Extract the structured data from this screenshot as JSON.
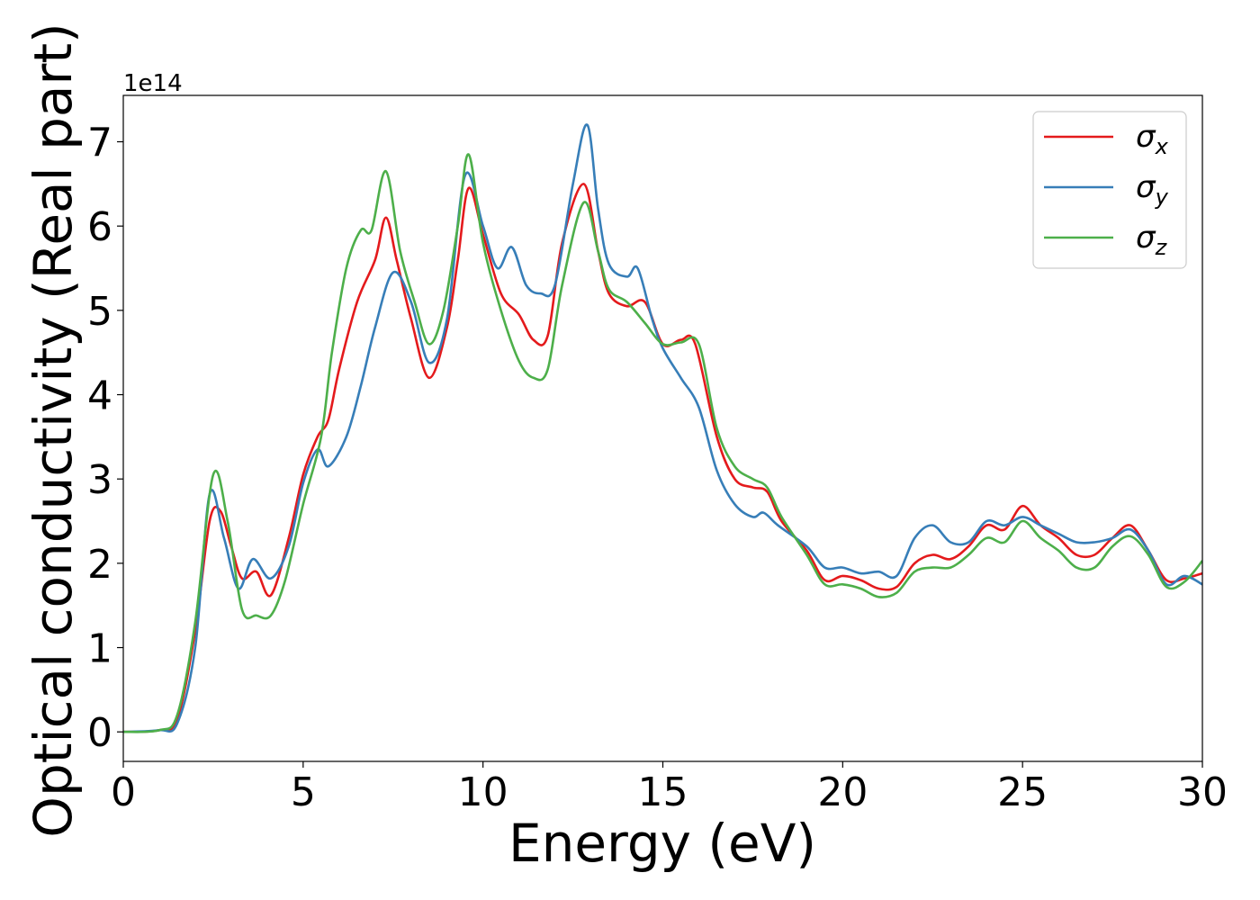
{
  "chart_data": {
    "type": "line",
    "xlabel": "Energy (eV)",
    "ylabel": "Optical conductivity (Real part)",
    "y_multiplier_label": "1e14",
    "xlim": [
      0,
      30
    ],
    "ylim": [
      -0.35,
      7.55
    ],
    "xticks": [
      0,
      5,
      10,
      15,
      20,
      25,
      30
    ],
    "yticks": [
      0,
      1,
      2,
      3,
      4,
      5,
      6,
      7
    ],
    "grid": false,
    "legend_position": "top-right",
    "series": [
      {
        "base": "σ",
        "sub": "x",
        "color": "#e41a1c",
        "points": [
          [
            0,
            0
          ],
          [
            1,
            0.02
          ],
          [
            1.5,
            0.15
          ],
          [
            2,
            1.2
          ],
          [
            2.4,
            2.5
          ],
          [
            2.7,
            2.62
          ],
          [
            3.0,
            2.2
          ],
          [
            3.3,
            1.82
          ],
          [
            3.7,
            1.9
          ],
          [
            4.1,
            1.62
          ],
          [
            4.6,
            2.3
          ],
          [
            5,
            3.05
          ],
          [
            5.4,
            3.5
          ],
          [
            5.7,
            3.7
          ],
          [
            6,
            4.3
          ],
          [
            6.5,
            5.1
          ],
          [
            7,
            5.6
          ],
          [
            7.3,
            6.1
          ],
          [
            7.6,
            5.6
          ],
          [
            8,
            4.9
          ],
          [
            8.5,
            4.2
          ],
          [
            9,
            4.8
          ],
          [
            9.3,
            5.6
          ],
          [
            9.6,
            6.45
          ],
          [
            10,
            5.9
          ],
          [
            10.5,
            5.2
          ],
          [
            11,
            4.95
          ],
          [
            11.4,
            4.65
          ],
          [
            11.8,
            4.7
          ],
          [
            12.2,
            5.8
          ],
          [
            12.8,
            6.5
          ],
          [
            13.2,
            5.7
          ],
          [
            13.5,
            5.2
          ],
          [
            14,
            5.05
          ],
          [
            14.5,
            5.1
          ],
          [
            15,
            4.6
          ],
          [
            15.5,
            4.65
          ],
          [
            15.9,
            4.6
          ],
          [
            16.5,
            3.5
          ],
          [
            17,
            3.0
          ],
          [
            17.5,
            2.9
          ],
          [
            17.9,
            2.85
          ],
          [
            18.3,
            2.5
          ],
          [
            19,
            2.15
          ],
          [
            19.5,
            1.8
          ],
          [
            20,
            1.85
          ],
          [
            20.5,
            1.8
          ],
          [
            21,
            1.7
          ],
          [
            21.5,
            1.72
          ],
          [
            22,
            2.0
          ],
          [
            22.5,
            2.1
          ],
          [
            23,
            2.05
          ],
          [
            23.5,
            2.2
          ],
          [
            24,
            2.45
          ],
          [
            24.5,
            2.4
          ],
          [
            25,
            2.68
          ],
          [
            25.5,
            2.45
          ],
          [
            26,
            2.3
          ],
          [
            26.5,
            2.1
          ],
          [
            27,
            2.1
          ],
          [
            27.5,
            2.3
          ],
          [
            28,
            2.45
          ],
          [
            28.5,
            2.15
          ],
          [
            29,
            1.8
          ],
          [
            29.5,
            1.82
          ],
          [
            30,
            1.88
          ]
        ]
      },
      {
        "base": "σ",
        "sub": "y",
        "color": "#377eb8",
        "points": [
          [
            0,
            0
          ],
          [
            1,
            0.02
          ],
          [
            1.5,
            0.1
          ],
          [
            2,
            1.0
          ],
          [
            2.4,
            2.82
          ],
          [
            2.8,
            2.3
          ],
          [
            3.2,
            1.7
          ],
          [
            3.6,
            2.05
          ],
          [
            4.1,
            1.82
          ],
          [
            4.6,
            2.2
          ],
          [
            5,
            2.95
          ],
          [
            5.4,
            3.35
          ],
          [
            5.7,
            3.15
          ],
          [
            6.2,
            3.5
          ],
          [
            6.6,
            4.1
          ],
          [
            7,
            4.8
          ],
          [
            7.5,
            5.45
          ],
          [
            8,
            5.1
          ],
          [
            8.5,
            4.38
          ],
          [
            9,
            4.9
          ],
          [
            9.5,
            6.6
          ],
          [
            10,
            6.0
          ],
          [
            10.4,
            5.5
          ],
          [
            10.8,
            5.75
          ],
          [
            11.2,
            5.3
          ],
          [
            11.6,
            5.2
          ],
          [
            12,
            5.3
          ],
          [
            12.5,
            6.5
          ],
          [
            12.9,
            7.2
          ],
          [
            13.2,
            6.2
          ],
          [
            13.5,
            5.55
          ],
          [
            14,
            5.4
          ],
          [
            14.3,
            5.5
          ],
          [
            14.7,
            4.9
          ],
          [
            15,
            4.55
          ],
          [
            15.5,
            4.2
          ],
          [
            16,
            3.85
          ],
          [
            16.5,
            3.1
          ],
          [
            17,
            2.7
          ],
          [
            17.5,
            2.55
          ],
          [
            17.8,
            2.6
          ],
          [
            18.2,
            2.45
          ],
          [
            19,
            2.2
          ],
          [
            19.5,
            1.95
          ],
          [
            20,
            1.95
          ],
          [
            20.5,
            1.88
          ],
          [
            21,
            1.9
          ],
          [
            21.5,
            1.85
          ],
          [
            22,
            2.3
          ],
          [
            22.5,
            2.45
          ],
          [
            23,
            2.25
          ],
          [
            23.5,
            2.25
          ],
          [
            24,
            2.5
          ],
          [
            24.5,
            2.45
          ],
          [
            25,
            2.55
          ],
          [
            25.5,
            2.45
          ],
          [
            26,
            2.35
          ],
          [
            26.5,
            2.25
          ],
          [
            27,
            2.25
          ],
          [
            27.5,
            2.3
          ],
          [
            28,
            2.4
          ],
          [
            28.5,
            2.15
          ],
          [
            29,
            1.75
          ],
          [
            29.5,
            1.85
          ],
          [
            30,
            1.75
          ]
        ]
      },
      {
        "base": "σ",
        "sub": "z",
        "color": "#4daf4a",
        "points": [
          [
            0,
            0
          ],
          [
            1,
            0.02
          ],
          [
            1.5,
            0.2
          ],
          [
            2,
            1.3
          ],
          [
            2.5,
            3.05
          ],
          [
            2.9,
            2.5
          ],
          [
            3.3,
            1.45
          ],
          [
            3.7,
            1.38
          ],
          [
            4.1,
            1.38
          ],
          [
            4.5,
            1.8
          ],
          [
            5,
            2.7
          ],
          [
            5.5,
            3.5
          ],
          [
            5.8,
            4.5
          ],
          [
            6.2,
            5.5
          ],
          [
            6.6,
            5.95
          ],
          [
            6.9,
            5.95
          ],
          [
            7.3,
            6.65
          ],
          [
            7.7,
            5.7
          ],
          [
            8.1,
            5.1
          ],
          [
            8.5,
            4.6
          ],
          [
            8.9,
            5.0
          ],
          [
            9.3,
            6.0
          ],
          [
            9.6,
            6.85
          ],
          [
            10,
            5.8
          ],
          [
            10.5,
            5.0
          ],
          [
            11,
            4.4
          ],
          [
            11.4,
            4.2
          ],
          [
            11.8,
            4.3
          ],
          [
            12.2,
            5.3
          ],
          [
            12.8,
            6.28
          ],
          [
            13.2,
            5.7
          ],
          [
            13.5,
            5.25
          ],
          [
            14,
            5.1
          ],
          [
            14.5,
            4.85
          ],
          [
            15,
            4.6
          ],
          [
            15.5,
            4.62
          ],
          [
            16,
            4.6
          ],
          [
            16.5,
            3.6
          ],
          [
            17,
            3.15
          ],
          [
            17.5,
            3.0
          ],
          [
            17.9,
            2.9
          ],
          [
            18.3,
            2.55
          ],
          [
            19,
            2.1
          ],
          [
            19.5,
            1.75
          ],
          [
            20,
            1.75
          ],
          [
            20.5,
            1.7
          ],
          [
            21,
            1.6
          ],
          [
            21.5,
            1.65
          ],
          [
            22,
            1.9
          ],
          [
            22.5,
            1.95
          ],
          [
            23,
            1.95
          ],
          [
            23.5,
            2.1
          ],
          [
            24,
            2.3
          ],
          [
            24.5,
            2.25
          ],
          [
            25,
            2.5
          ],
          [
            25.5,
            2.3
          ],
          [
            26,
            2.15
          ],
          [
            26.5,
            1.95
          ],
          [
            27,
            1.95
          ],
          [
            27.5,
            2.2
          ],
          [
            28,
            2.32
          ],
          [
            28.5,
            2.1
          ],
          [
            29,
            1.72
          ],
          [
            29.5,
            1.78
          ],
          [
            30,
            2.03
          ]
        ]
      }
    ]
  }
}
